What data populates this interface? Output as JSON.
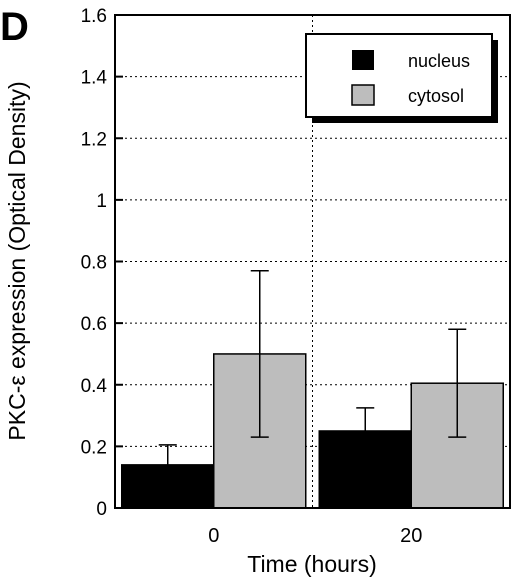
{
  "panel_label": "D",
  "colors": {
    "nucleus": "#000000",
    "cytosol": "#bdbdbd",
    "axis": "#000000"
  },
  "chart_data": {
    "type": "bar",
    "title": "",
    "xlabel": "Time (hours)",
    "ylabel": "PKC-ε expression (Optical Density)",
    "categories": [
      "0",
      "20"
    ],
    "series": [
      {
        "name": "nucleus",
        "values": [
          0.14,
          0.25
        ],
        "errors": [
          0.065,
          0.075
        ]
      },
      {
        "name": "cytosol",
        "values": [
          0.5,
          0.405
        ],
        "errors": [
          0.27,
          0.175
        ]
      }
    ],
    "ylim": [
      0,
      1.6
    ],
    "yticks": [
      "0",
      "0.2",
      "0.4",
      "0.6",
      "0.8",
      "1",
      "1.2",
      "1.4",
      "1.6"
    ],
    "grid": true,
    "legend": "top-right"
  }
}
